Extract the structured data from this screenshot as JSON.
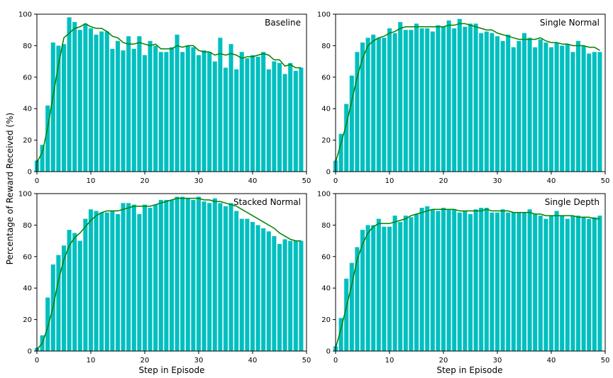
{
  "figure": {
    "ylabel": "Percentage of Reward Received (%)",
    "xlabel": "Step in Episode"
  },
  "colors": {
    "bar": "#00bfbf",
    "line": "#008000",
    "axis": "#000000"
  },
  "chart_data": [
    {
      "type": "bar",
      "title": "Baseline",
      "xlabel": "",
      "ylabel": "Percentage of Reward Received (%)",
      "xlim": [
        0,
        50
      ],
      "ylim": [
        0,
        100
      ],
      "xticks": [
        0,
        10,
        20,
        30,
        40,
        50
      ],
      "yticks": [
        0,
        20,
        40,
        60,
        80,
        100
      ],
      "grid": false,
      "series": [
        {
          "type": "bar",
          "x": [
            0,
            1,
            2,
            3,
            4,
            5,
            6,
            7,
            8,
            9,
            10,
            11,
            12,
            13,
            14,
            15,
            16,
            17,
            18,
            19,
            20,
            21,
            22,
            23,
            24,
            25,
            26,
            27,
            28,
            29,
            30,
            31,
            32,
            33,
            34,
            35,
            36,
            37,
            38,
            39,
            40,
            41,
            42,
            43,
            44,
            45,
            46,
            47,
            48,
            49
          ],
          "values": [
            7,
            17,
            42,
            82,
            80,
            81,
            98,
            95,
            90,
            94,
            91,
            87,
            89,
            89,
            78,
            83,
            77,
            86,
            78,
            86,
            74,
            83,
            80,
            76,
            76,
            79,
            87,
            76,
            80,
            79,
            74,
            77,
            76,
            70,
            85,
            66,
            81,
            65,
            76,
            72,
            74,
            73,
            76,
            65,
            70,
            69,
            62,
            69,
            64,
            66
          ]
        },
        {
          "type": "line",
          "x": [
            0,
            1,
            2,
            3,
            4,
            5,
            6,
            7,
            8,
            9,
            10,
            11,
            12,
            13,
            14,
            15,
            16,
            17,
            18,
            19,
            20,
            21,
            22,
            23,
            24,
            25,
            26,
            27,
            28,
            29,
            30,
            31,
            32,
            33,
            34,
            35,
            36,
            37,
            38,
            39,
            40,
            41,
            42,
            43,
            44,
            45,
            46,
            47,
            48,
            49
          ],
          "values": [
            6,
            12,
            28,
            48,
            68,
            85,
            88,
            91,
            92,
            94,
            92,
            91,
            91,
            89,
            86,
            85,
            82,
            81,
            81,
            82,
            81,
            80,
            81,
            78,
            78,
            78,
            80,
            79,
            80,
            80,
            77,
            76,
            76,
            74,
            75,
            74,
            75,
            74,
            72,
            73,
            73,
            74,
            75,
            74,
            71,
            71,
            67,
            68,
            66,
            66
          ]
        }
      ]
    },
    {
      "type": "bar",
      "title": "Single Normal",
      "xlabel": "",
      "ylabel": "",
      "xlim": [
        0,
        50
      ],
      "ylim": [
        0,
        100
      ],
      "xticks": [
        0,
        10,
        20,
        30,
        40,
        50
      ],
      "yticks": [
        0,
        20,
        40,
        60,
        80,
        100
      ],
      "grid": false,
      "series": [
        {
          "type": "bar",
          "x": [
            0,
            1,
            2,
            3,
            4,
            5,
            6,
            7,
            8,
            9,
            10,
            11,
            12,
            13,
            14,
            15,
            16,
            17,
            18,
            19,
            20,
            21,
            22,
            23,
            24,
            25,
            26,
            27,
            28,
            29,
            30,
            31,
            32,
            33,
            34,
            35,
            36,
            37,
            38,
            39,
            40,
            41,
            42,
            43,
            44,
            45,
            46,
            47,
            48,
            49
          ],
          "values": [
            7,
            24,
            43,
            61,
            76,
            82,
            85,
            87,
            85,
            85,
            91,
            88,
            95,
            90,
            90,
            94,
            91,
            91,
            89,
            93,
            92,
            96,
            91,
            97,
            92,
            94,
            94,
            88,
            89,
            88,
            86,
            83,
            87,
            79,
            83,
            88,
            85,
            79,
            84,
            82,
            79,
            82,
            80,
            81,
            76,
            83,
            80,
            75,
            76,
            76
          ]
        },
        {
          "type": "line",
          "x": [
            0,
            1,
            2,
            3,
            4,
            5,
            6,
            7,
            8,
            9,
            10,
            11,
            12,
            13,
            14,
            15,
            16,
            17,
            18,
            19,
            20,
            21,
            22,
            23,
            24,
            25,
            26,
            27,
            28,
            29,
            30,
            31,
            32,
            33,
            34,
            35,
            36,
            37,
            38,
            39,
            40,
            41,
            42,
            43,
            44,
            45,
            46,
            47,
            48,
            49
          ],
          "values": [
            6,
            18,
            30,
            45,
            60,
            72,
            80,
            83,
            85,
            86,
            88,
            89,
            91,
            92,
            92,
            92,
            92,
            92,
            92,
            92,
            92,
            93,
            93,
            94,
            94,
            93,
            92,
            91,
            90,
            90,
            88,
            87,
            86,
            85,
            84,
            84,
            84,
            84,
            85,
            83,
            82,
            82,
            81,
            81,
            80,
            80,
            80,
            79,
            79,
            77
          ]
        }
      ]
    },
    {
      "type": "bar",
      "title": "Stacked Normal",
      "xlabel": "Step in Episode",
      "ylabel": "",
      "xlim": [
        0,
        50
      ],
      "ylim": [
        0,
        100
      ],
      "xticks": [
        0,
        10,
        20,
        30,
        40,
        50
      ],
      "yticks": [
        0,
        20,
        40,
        60,
        80,
        100
      ],
      "grid": false,
      "series": [
        {
          "type": "bar",
          "x": [
            0,
            1,
            2,
            3,
            4,
            5,
            6,
            7,
            8,
            9,
            10,
            11,
            12,
            13,
            14,
            15,
            16,
            17,
            18,
            19,
            20,
            21,
            22,
            23,
            24,
            25,
            26,
            27,
            28,
            29,
            30,
            31,
            32,
            33,
            34,
            35,
            36,
            37,
            38,
            39,
            40,
            41,
            42,
            43,
            44,
            45,
            46,
            47,
            48,
            49
          ],
          "values": [
            2,
            10,
            34,
            55,
            61,
            67,
            77,
            75,
            70,
            84,
            90,
            89,
            88,
            88,
            89,
            87,
            94,
            94,
            93,
            87,
            93,
            91,
            93,
            96,
            96,
            96,
            98,
            98,
            97,
            96,
            98,
            95,
            94,
            97,
            94,
            92,
            94,
            89,
            84,
            84,
            82,
            80,
            78,
            76,
            73,
            68,
            71,
            70,
            70,
            70
          ]
        },
        {
          "type": "line",
          "x": [
            0,
            1,
            2,
            3,
            4,
            5,
            6,
            7,
            8,
            9,
            10,
            11,
            12,
            13,
            14,
            15,
            16,
            17,
            18,
            19,
            20,
            21,
            22,
            23,
            24,
            25,
            26,
            27,
            28,
            29,
            30,
            31,
            32,
            33,
            34,
            35,
            36,
            37,
            38,
            39,
            40,
            41,
            42,
            43,
            44,
            45,
            46,
            47,
            48,
            49
          ],
          "values": [
            1,
            5,
            15,
            28,
            45,
            58,
            67,
            72,
            75,
            79,
            83,
            86,
            88,
            89,
            89,
            89,
            90,
            91,
            92,
            92,
            92,
            92,
            93,
            94,
            95,
            96,
            97,
            97,
            97,
            97,
            97,
            96,
            96,
            95,
            95,
            94,
            93,
            92,
            90,
            88,
            86,
            84,
            82,
            80,
            78,
            75,
            73,
            71,
            70,
            70
          ]
        }
      ]
    },
    {
      "type": "bar",
      "title": "Single Depth",
      "xlabel": "Step in Episode",
      "ylabel": "",
      "xlim": [
        0,
        50
      ],
      "ylim": [
        0,
        100
      ],
      "xticks": [
        0,
        10,
        20,
        30,
        40,
        50
      ],
      "yticks": [
        0,
        20,
        40,
        60,
        80,
        100
      ],
      "grid": false,
      "series": [
        {
          "type": "bar",
          "x": [
            0,
            1,
            2,
            3,
            4,
            5,
            6,
            7,
            8,
            9,
            10,
            11,
            12,
            13,
            14,
            15,
            16,
            17,
            18,
            19,
            20,
            21,
            22,
            23,
            24,
            25,
            26,
            27,
            28,
            29,
            30,
            31,
            32,
            33,
            34,
            35,
            36,
            37,
            38,
            39,
            40,
            41,
            42,
            43,
            44,
            45,
            46,
            47,
            48,
            49
          ],
          "values": [
            3,
            21,
            46,
            56,
            66,
            77,
            80,
            80,
            84,
            79,
            79,
            86,
            82,
            86,
            85,
            87,
            91,
            92,
            90,
            89,
            91,
            90,
            90,
            88,
            89,
            87,
            90,
            91,
            91,
            88,
            88,
            90,
            88,
            88,
            88,
            88,
            90,
            87,
            86,
            84,
            86,
            89,
            86,
            84,
            86,
            86,
            85,
            84,
            85,
            86
          ]
        },
        {
          "type": "line",
          "x": [
            0,
            1,
            2,
            3,
            4,
            5,
            6,
            7,
            8,
            9,
            10,
            11,
            12,
            13,
            14,
            15,
            16,
            17,
            18,
            19,
            20,
            21,
            22,
            23,
            24,
            25,
            26,
            27,
            28,
            29,
            30,
            31,
            32,
            33,
            34,
            35,
            36,
            37,
            38,
            39,
            40,
            41,
            42,
            43,
            44,
            45,
            46,
            47,
            48,
            49
          ],
          "values": [
            2,
            14,
            28,
            42,
            58,
            68,
            75,
            79,
            81,
            81,
            81,
            82,
            83,
            84,
            86,
            87,
            88,
            89,
            90,
            90,
            90,
            90,
            90,
            89,
            89,
            89,
            89,
            89,
            90,
            89,
            89,
            89,
            89,
            88,
            88,
            88,
            88,
            87,
            87,
            86,
            86,
            86,
            86,
            86,
            86,
            85,
            85,
            85,
            84,
            84
          ]
        }
      ]
    }
  ]
}
